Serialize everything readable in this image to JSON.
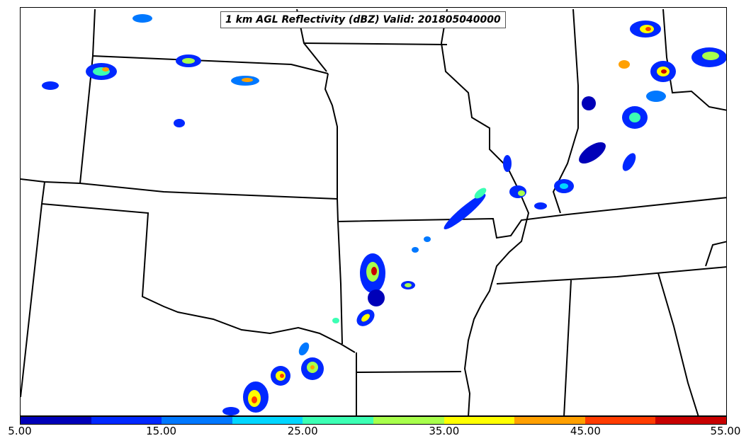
{
  "title": "1 km AGL Reflectivity (dBZ) Valid: 201805040000",
  "colorbar": {
    "colors": [
      "#0000b8",
      "#0028ff",
      "#0078ff",
      "#00d6ff",
      "#3cffb4",
      "#a8ff4c",
      "#ffff00",
      "#ffa000",
      "#ff3c00",
      "#c80000"
    ],
    "tick_labels": [
      "5.00",
      "15.00",
      "25.00",
      "35.00",
      "45.00",
      "55.00"
    ]
  },
  "legend": {
    "variable": "Reflectivity",
    "units": "dBZ",
    "level": "1 km AGL",
    "min": 5.0,
    "max": 55.0
  }
}
